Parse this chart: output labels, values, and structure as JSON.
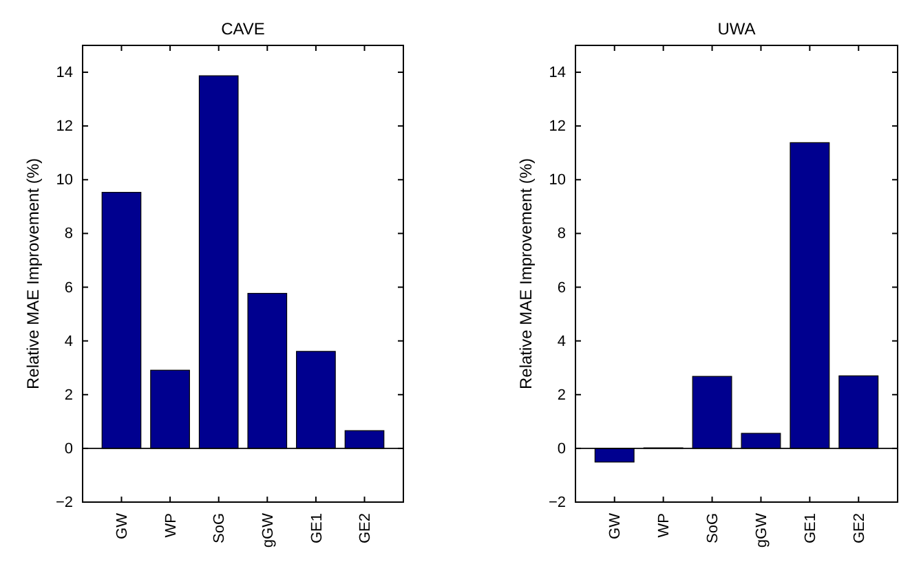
{
  "chart_data": [
    {
      "type": "bar",
      "title": "CAVE",
      "ylabel": "Relative MAE Improvement (%)",
      "categories": [
        "GW",
        "WP",
        "SoG",
        "gGW",
        "GE1",
        "GE2"
      ],
      "series": [
        {
          "color": "#00008f",
          "values": [
            9.53,
            2.91,
            13.87,
            5.77,
            3.61,
            0.66
          ]
        }
      ],
      "ylim": [
        -2,
        15
      ],
      "yticks": [
        -2,
        0,
        2,
        4,
        6,
        8,
        10,
        12,
        14
      ],
      "grid": false,
      "ref_lines": [
        {
          "axis": "y",
          "value": 0,
          "color": "#000000"
        }
      ]
    },
    {
      "type": "bar",
      "title": "UWA",
      "ylabel": "Relative MAE Improvement (%)",
      "categories": [
        "GW",
        "WP",
        "SoG",
        "gGW",
        "GE1",
        "GE2"
      ],
      "series": [
        {
          "color": "#00008f",
          "values": [
            -0.51,
            0.02,
            2.68,
            0.56,
            11.38,
            2.7
          ]
        }
      ],
      "ylim": [
        -2,
        15
      ],
      "yticks": [
        -2,
        0,
        2,
        4,
        6,
        8,
        10,
        12,
        14
      ],
      "grid": false,
      "ref_lines": [
        {
          "axis": "y",
          "value": 0,
          "color": "#000000"
        }
      ]
    }
  ]
}
